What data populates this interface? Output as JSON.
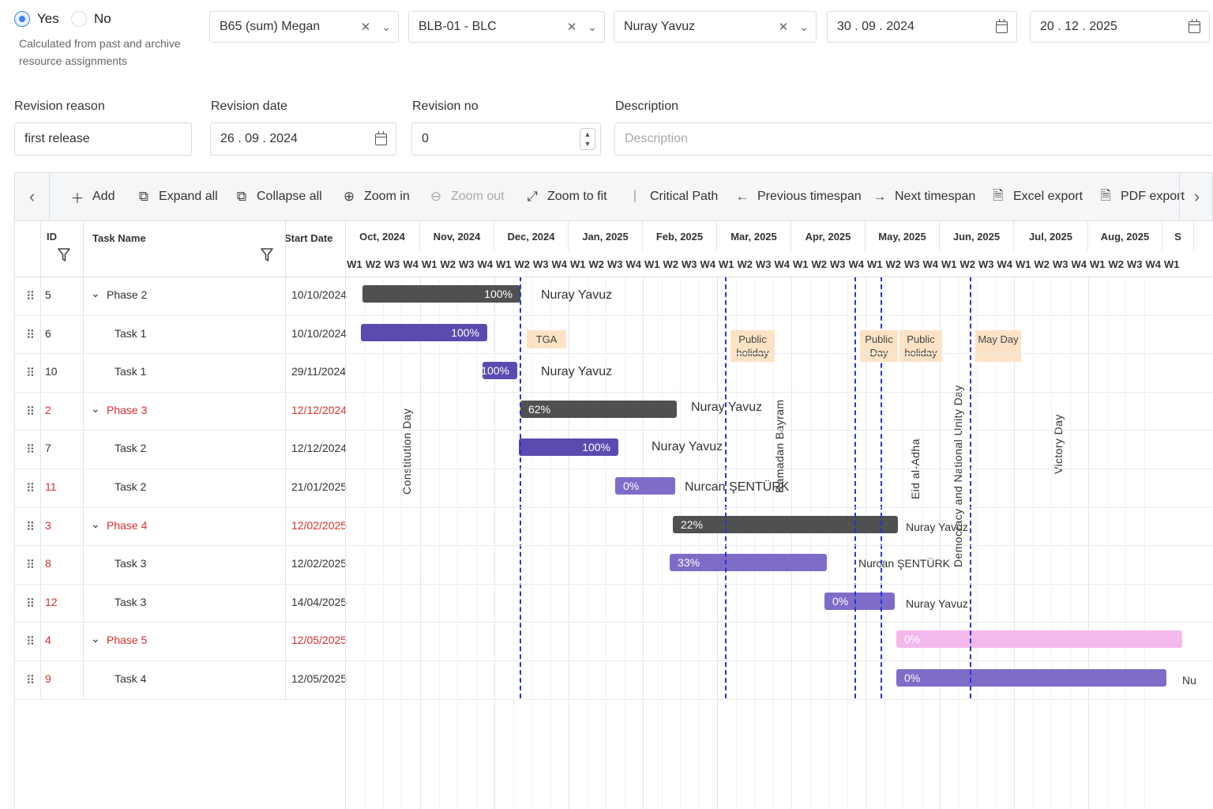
{
  "filters": {
    "radio_yes": "Yes",
    "radio_no": "No",
    "calc_note": "Calculated from past and archive resource assignments",
    "project": "B65 (sum) Megan",
    "unit": "BLB-01 - BLC",
    "person": "Nuray Yavuz",
    "date_from": "30 . 09 . 2024",
    "date_to": "20 . 12 . 2025"
  },
  "revision": {
    "reason_label": "Revision reason",
    "reason_value": "first release",
    "date_label": "Revision date",
    "date_value": "26 . 09 . 2024",
    "no_label": "Revision no",
    "no_value": "0",
    "desc_label": "Description",
    "desc_placeholder": "Description"
  },
  "toolbar": {
    "add": "Add",
    "expand": "Expand all",
    "collapse": "Collapse all",
    "zoom_in": "Zoom in",
    "zoom_out": "Zoom out",
    "zoom_fit": "Zoom to fit",
    "critical": "Critical Path",
    "prev": "Previous timespan",
    "next": "Next timespan",
    "excel": "Excel export",
    "pdf": "PDF export"
  },
  "grid": {
    "col_id": "ID",
    "col_name": "Task Name",
    "col_start": "Start Date",
    "months": [
      "Oct, 2024",
      "Nov, 2024",
      "Dec, 2024",
      "Jan, 2025",
      "Feb, 2025",
      "Mar, 2025",
      "Apr, 2025",
      "May, 2025",
      "Jun, 2025",
      "Jul, 2025",
      "Aug, 2025",
      "S"
    ],
    "week_labels": [
      "W1",
      "W2",
      "W3",
      "W4"
    ],
    "rows": [
      {
        "id": "5",
        "name": "Phase 2",
        "start": "10/10/2024",
        "phase": true,
        "red": false
      },
      {
        "id": "6",
        "name": "Task 1",
        "start": "10/10/2024",
        "phase": false,
        "red": false
      },
      {
        "id": "10",
        "name": "Task 1",
        "start": "29/11/2024",
        "phase": false,
        "red": false
      },
      {
        "id": "2",
        "name": "Phase 3",
        "start": "12/12/2024",
        "phase": true,
        "red": true
      },
      {
        "id": "7",
        "name": "Task 2",
        "start": "12/12/2024",
        "phase": false,
        "red": false
      },
      {
        "id": "11",
        "name": "Task 2",
        "start": "21/01/2025",
        "phase": false,
        "red": true
      },
      {
        "id": "3",
        "name": "Phase 4",
        "start": "12/02/2025",
        "phase": true,
        "red": true
      },
      {
        "id": "8",
        "name": "Task 3",
        "start": "12/02/2025",
        "phase": false,
        "red": true
      },
      {
        "id": "12",
        "name": "Task 3",
        "start": "14/04/2025",
        "phase": false,
        "red": true
      },
      {
        "id": "4",
        "name": "Phase 5",
        "start": "12/05/2025",
        "phase": true,
        "red": true
      },
      {
        "id": "9",
        "name": "Task 4",
        "start": "12/05/2025",
        "phase": false,
        "red": true
      }
    ]
  },
  "bars": [
    {
      "row": 0,
      "kind": "phase",
      "pct": "100%",
      "resource": "Nuray Yavuz"
    },
    {
      "row": 1,
      "kind": "task",
      "pct": "100%",
      "resource": ""
    },
    {
      "row": 2,
      "kind": "task",
      "pct": "100%",
      "resource": "Nuray Yavuz"
    },
    {
      "row": 3,
      "kind": "phase",
      "pct": "62%",
      "resource": "Nuray Yavuz"
    },
    {
      "row": 4,
      "kind": "task",
      "pct": "100%",
      "resource": "Nuray Yavuz"
    },
    {
      "row": 5,
      "kind": "light",
      "pct": "0%",
      "resource": "Nurcan ŞENTÜRK"
    },
    {
      "row": 6,
      "kind": "phase",
      "pct": "22%",
      "resource": "Nuray Yavuz"
    },
    {
      "row": 7,
      "kind": "light",
      "pct": "33%",
      "resource": "Nurcan ŞENTÜRK"
    },
    {
      "row": 8,
      "kind": "light",
      "pct": "0%",
      "resource": "Nuray Yavuz"
    },
    {
      "row": 9,
      "kind": "pink",
      "pct": "0%",
      "resource": ""
    },
    {
      "row": 10,
      "kind": "light",
      "pct": "0%",
      "resource": "Nu"
    }
  ],
  "holidays": {
    "tga": "TGA",
    "public_holiday_1": "Public holiday",
    "public_day": "Public Day",
    "public_holiday_2": "Public holiday",
    "may_day": "May Day"
  },
  "events": {
    "constitution": "Constitution Day",
    "ramadan": "Ramadan Bayram",
    "eid": "Eid al-Adha",
    "democracy": "Democracy and National Unity Day",
    "victory": "Victory Day"
  },
  "colors": {
    "accent": "#3b82f6",
    "phase_bar": "#505050",
    "task_bar": "#5b4bb0",
    "task_bar_light": "#7f6cc8",
    "pink_bar": "#f3b8ec",
    "dashed_line": "#2733d8",
    "holiday_bg": "#fde3c6",
    "critical_red": "#d32f2f"
  }
}
